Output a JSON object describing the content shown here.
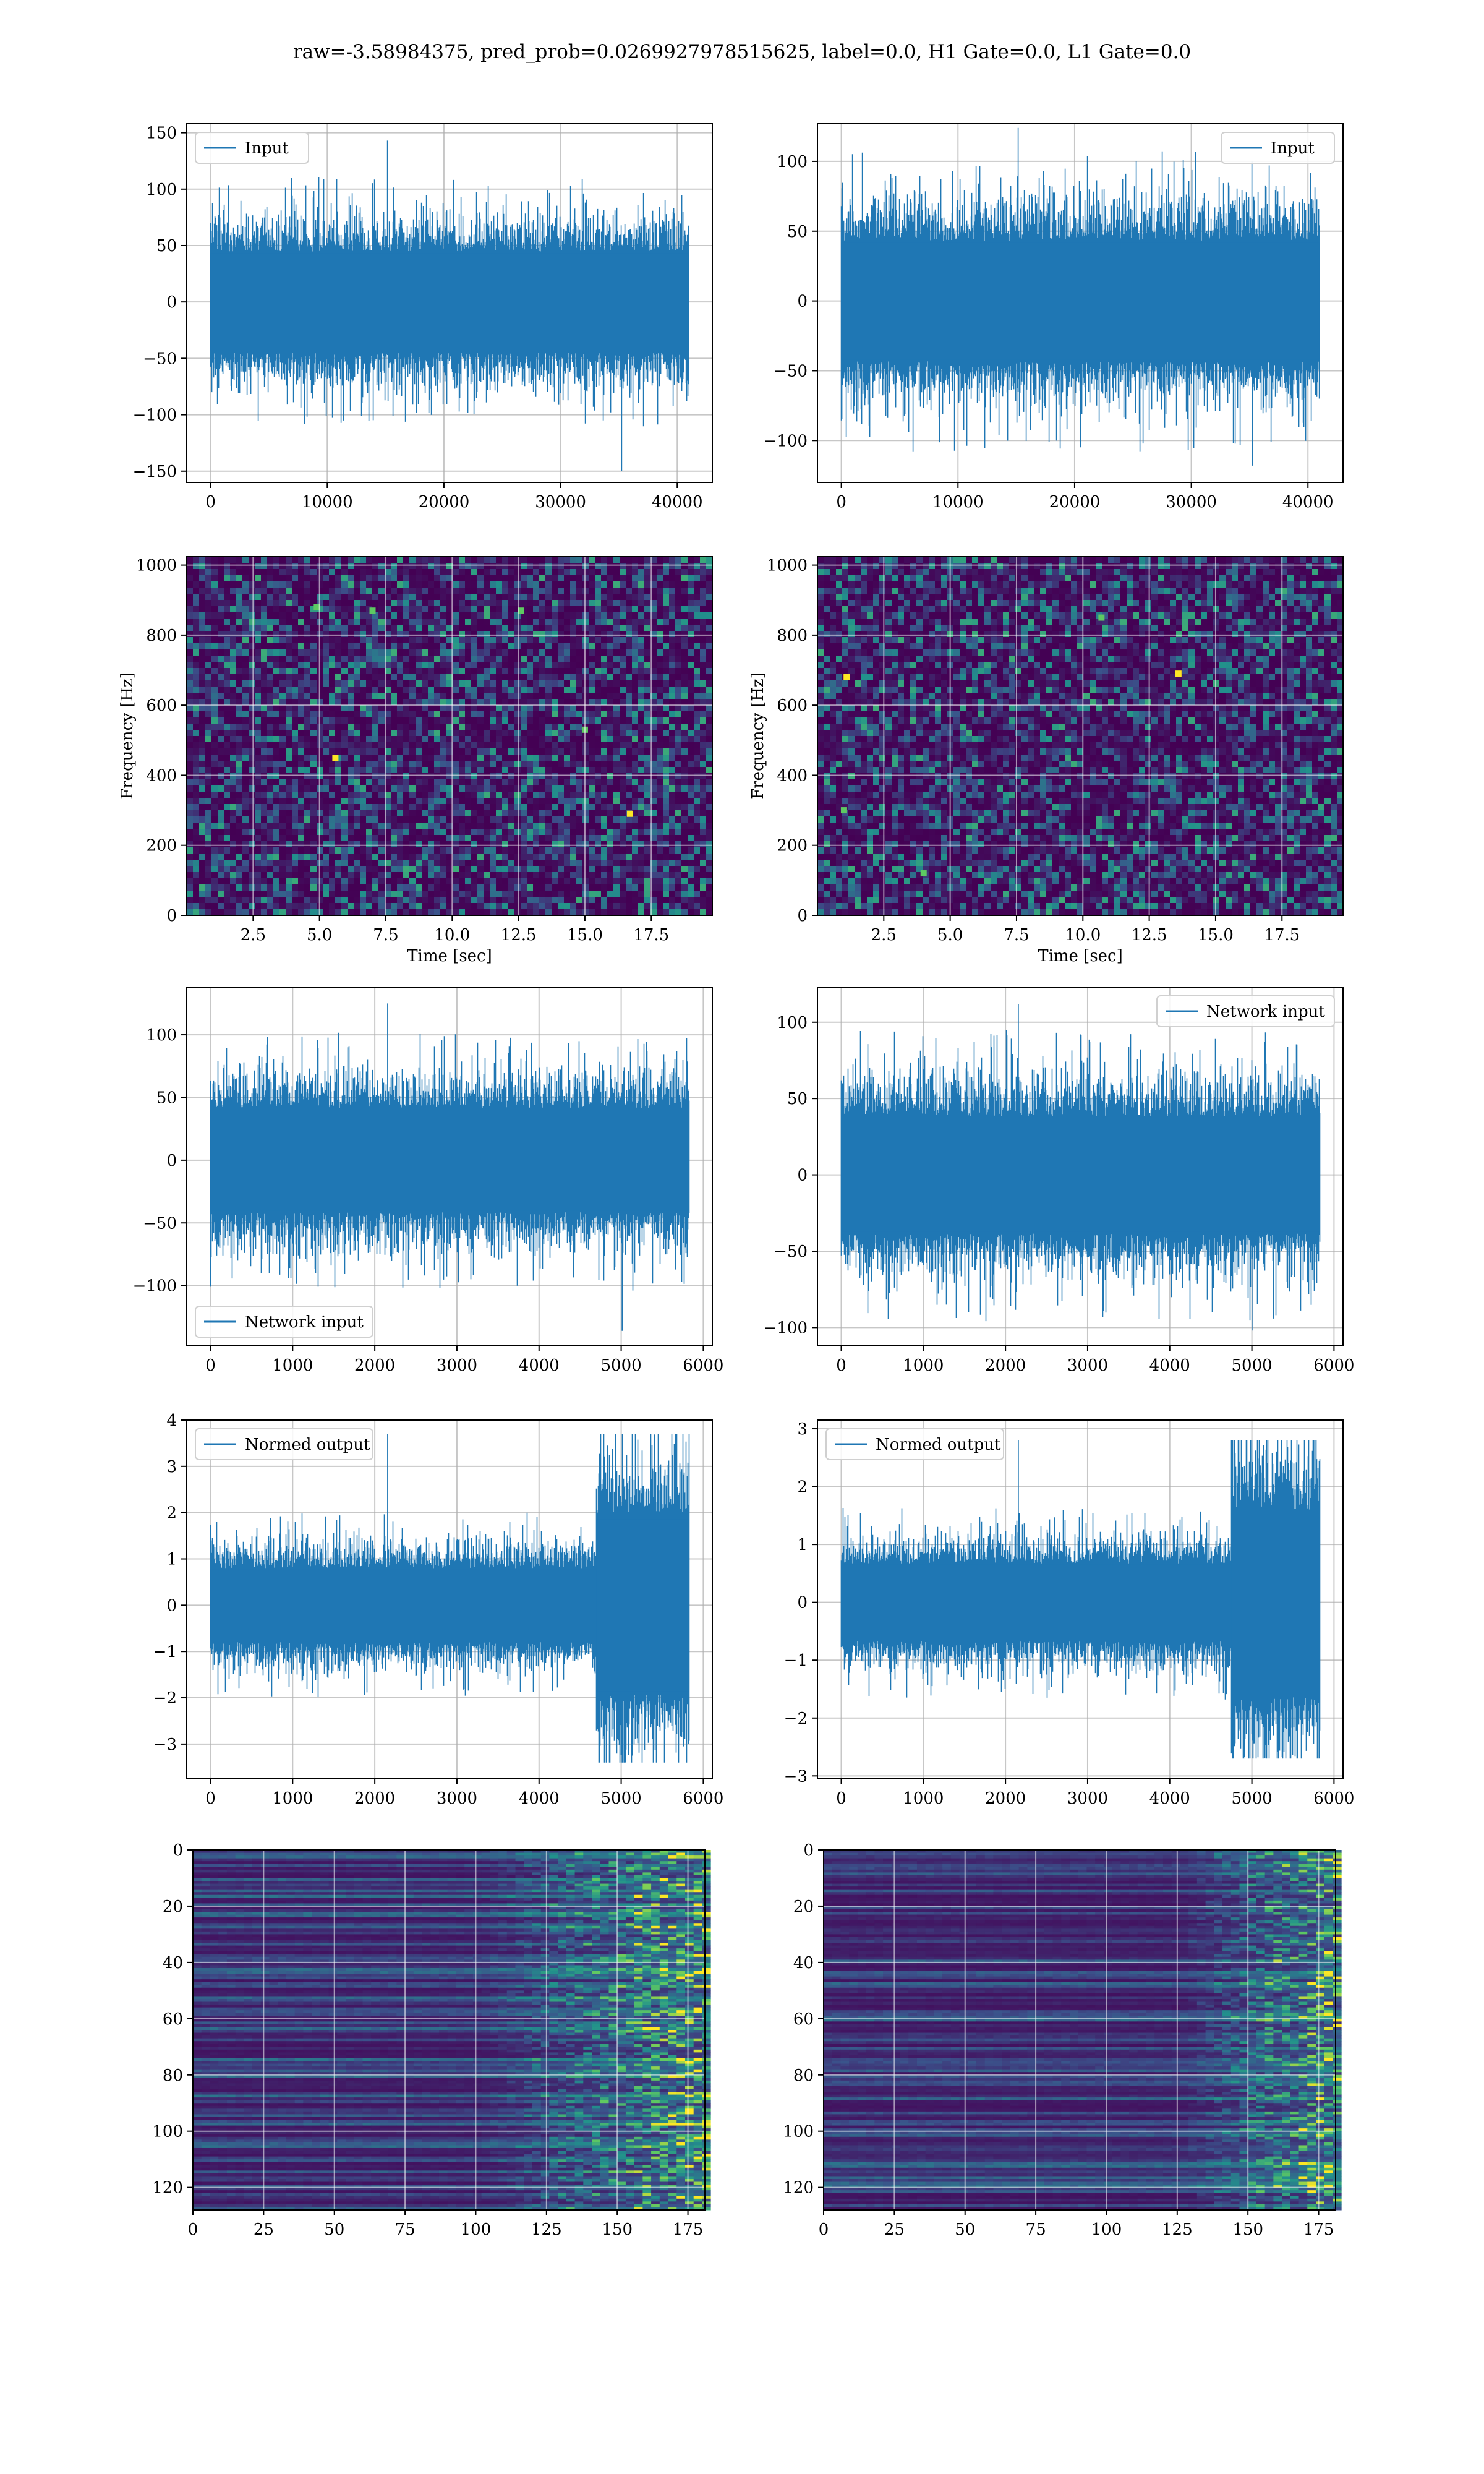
{
  "title": "raw=-3.58984375, pred_prob=0.0269927978515625, label=0.0, H1 Gate=0.0, L1 Gate=0.0",
  "colors": {
    "series": "#1f77b4",
    "viridis_low": "#440154",
    "viridis_mid": "#21918c",
    "viridis_high": "#fde725",
    "grid": "#b0b0b0"
  },
  "chart_data": [
    {
      "id": "input-h1",
      "type": "line",
      "legend": "Input",
      "legend_loc": "upper-left",
      "xlim": [
        -2048,
        43008
      ],
      "ylim": [
        -160,
        158
      ],
      "xticks": [
        0,
        10000,
        20000,
        30000,
        40000
      ],
      "yticks": [
        -150,
        -100,
        -50,
        0,
        50,
        100,
        150
      ],
      "signal": {
        "n": 40960,
        "amplitude": 28,
        "peak_max": 143,
        "peak_min": -150
      }
    },
    {
      "id": "input-l1",
      "type": "line",
      "legend": "Input",
      "legend_loc": "upper-right",
      "xlim": [
        -2048,
        43008
      ],
      "ylim": [
        -130,
        127
      ],
      "xticks": [
        0,
        10000,
        20000,
        30000,
        40000
      ],
      "yticks": [
        -100,
        -50,
        0,
        50,
        100
      ],
      "signal": {
        "n": 40960,
        "amplitude": 27,
        "peak_max": 124,
        "peak_min": -118
      }
    },
    {
      "id": "spectrogram-h1",
      "type": "heatmap",
      "xlabel": "Time [sec]",
      "ylabel": "Frequency [Hz]",
      "xlim": [
        0,
        19.8
      ],
      "ylim": [
        0,
        1024
      ],
      "xticks": [
        2.5,
        5.0,
        7.5,
        10.0,
        12.5,
        15.0,
        17.5
      ],
      "yticks": [
        0,
        200,
        400,
        600,
        800,
        1000
      ],
      "hot_spots": [
        [
          5.6,
          450
        ],
        [
          16.7,
          290
        ],
        [
          15.0,
          530
        ],
        [
          7.0,
          870
        ],
        [
          4.9,
          880
        ],
        [
          12.6,
          870
        ]
      ]
    },
    {
      "id": "spectrogram-l1",
      "type": "heatmap",
      "xlabel": "Time [sec]",
      "ylabel": "Frequency [Hz]",
      "xlim": [
        0,
        19.8
      ],
      "ylim": [
        0,
        1024
      ],
      "xticks": [
        2.5,
        5.0,
        7.5,
        10.0,
        12.5,
        15.0,
        17.5
      ],
      "yticks": [
        0,
        200,
        400,
        600,
        800,
        1000
      ],
      "hot_spots": [
        [
          1.1,
          680
        ],
        [
          13.6,
          690
        ],
        [
          4.0,
          120
        ],
        [
          1.0,
          300
        ],
        [
          10.7,
          850
        ]
      ]
    },
    {
      "id": "network-input-h1",
      "type": "line",
      "legend": "Network input",
      "legend_loc": "lower-left",
      "xlim": [
        -290,
        6110
      ],
      "ylim": [
        -148,
        138
      ],
      "xticks": [
        0,
        1000,
        2000,
        3000,
        4000,
        5000,
        6000
      ],
      "yticks": [
        -100,
        -50,
        0,
        50,
        100
      ],
      "signal": {
        "n": 5830,
        "amplitude": 26,
        "peak_max": 125,
        "peak_min": -136
      }
    },
    {
      "id": "network-input-l1",
      "type": "line",
      "legend": "Network input",
      "legend_loc": "upper-right",
      "xlim": [
        -290,
        6110
      ],
      "ylim": [
        -112,
        123
      ],
      "xticks": [
        0,
        1000,
        2000,
        3000,
        4000,
        5000,
        6000
      ],
      "yticks": [
        -100,
        -50,
        0,
        50,
        100
      ],
      "signal": {
        "n": 5830,
        "amplitude": 24,
        "peak_max": 112,
        "peak_min": -102
      }
    },
    {
      "id": "normed-output-h1",
      "type": "line",
      "legend": "Normed output",
      "legend_loc": "upper-left",
      "xlim": [
        -290,
        6110
      ],
      "ylim": [
        -3.75,
        4.0
      ],
      "xticks": [
        0,
        1000,
        2000,
        3000,
        4000,
        5000,
        6000
      ],
      "yticks": [
        -3,
        -2,
        -1,
        0,
        1,
        2,
        3,
        4
      ],
      "signal": {
        "n": 5830,
        "amplitude": 0.5,
        "burst_start": 4700,
        "burst_amplitude": 1.2,
        "peak_max": 3.7,
        "peak_min": -3.4
      }
    },
    {
      "id": "normed-output-l1",
      "type": "line",
      "legend": "Normed output",
      "legend_loc": "upper-left",
      "xlim": [
        -290,
        6110
      ],
      "ylim": [
        -3.05,
        3.15
      ],
      "xticks": [
        0,
        1000,
        2000,
        3000,
        4000,
        5000,
        6000
      ],
      "yticks": [
        -3,
        -2,
        -1,
        0,
        1,
        2,
        3
      ],
      "signal": {
        "n": 5830,
        "amplitude": 0.42,
        "burst_start": 4750,
        "burst_amplitude": 1.0,
        "peak_max": 2.8,
        "peak_min": -2.7
      }
    },
    {
      "id": "feature-map-h1",
      "type": "heatmap",
      "xlim": [
        0,
        181
      ],
      "ylim": [
        128,
        0
      ],
      "xticks": [
        0,
        25,
        50,
        75,
        100,
        125,
        150,
        175
      ],
      "yticks": [
        0,
        20,
        40,
        60,
        80,
        100,
        120
      ],
      "activity_start": 100
    },
    {
      "id": "feature-map-l1",
      "type": "heatmap",
      "xlim": [
        0,
        181
      ],
      "ylim": [
        128,
        0
      ],
      "xticks": [
        0,
        25,
        50,
        75,
        100,
        125,
        150,
        175
      ],
      "yticks": [
        0,
        20,
        40,
        60,
        80,
        100,
        120
      ],
      "activity_start": 125
    }
  ]
}
